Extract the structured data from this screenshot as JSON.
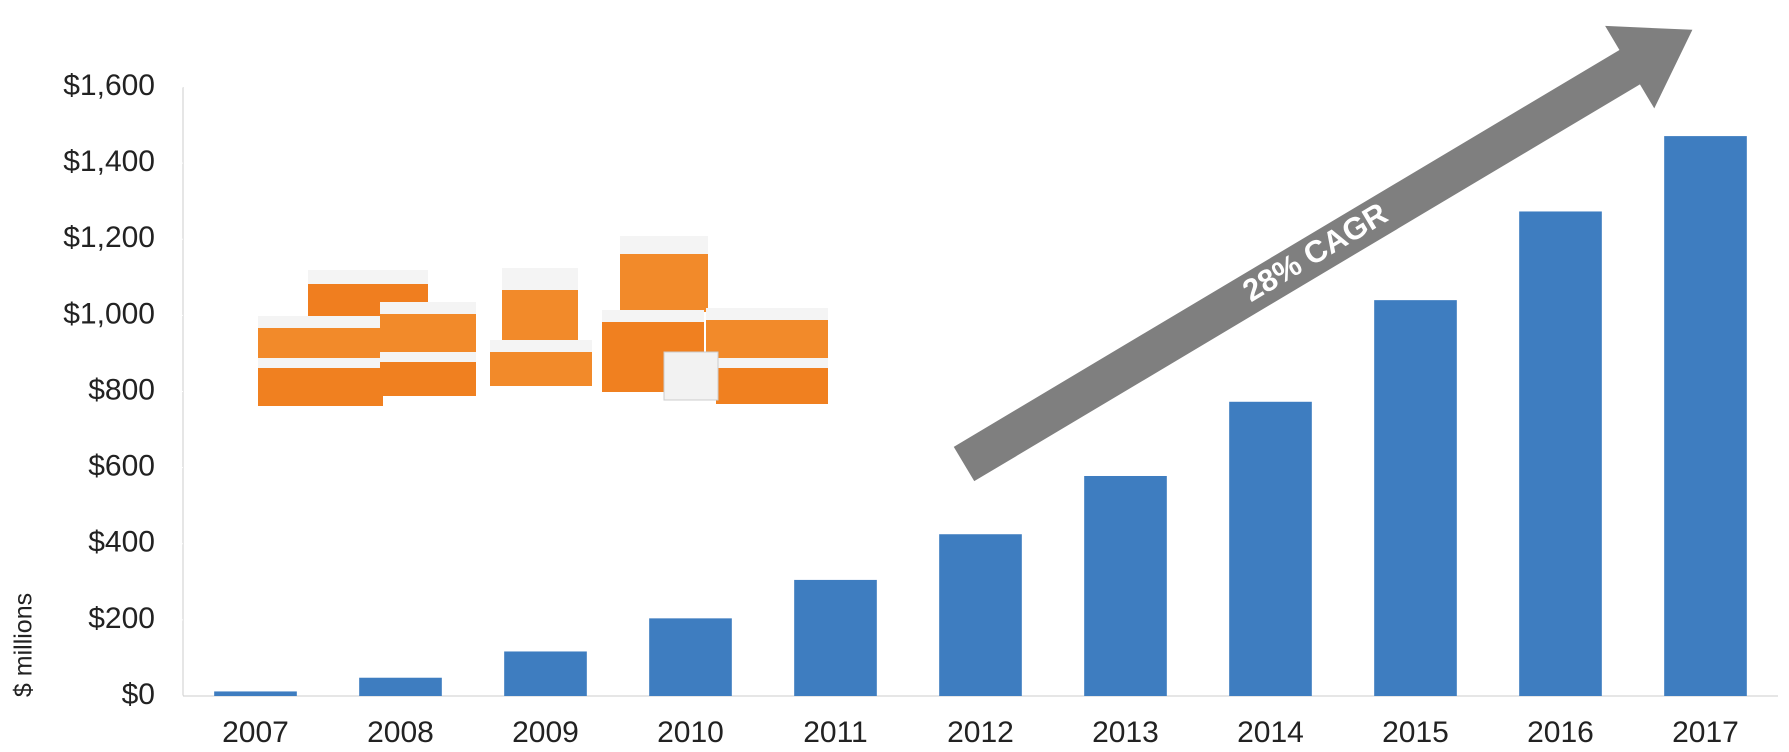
{
  "chart_data": {
    "type": "bar",
    "categories": [
      "2007",
      "2008",
      "2009",
      "2010",
      "2011",
      "2012",
      "2013",
      "2014",
      "2015",
      "2016",
      "2017"
    ],
    "values": [
      12,
      48,
      117,
      204,
      305,
      425,
      578,
      773,
      1040,
      1273,
      1471
    ],
    "color": "#3e7dc0",
    "ylim": [
      0,
      1600
    ],
    "yticks": [
      {
        "value": 0,
        "label": "$0"
      },
      {
        "value": 200,
        "label": "$200"
      },
      {
        "value": 400,
        "label": "$400"
      },
      {
        "value": 600,
        "label": "$600"
      },
      {
        "value": 800,
        "label": "$800"
      },
      {
        "value": 1000,
        "label": "$1,000"
      },
      {
        "value": 1200,
        "label": "$1,200"
      },
      {
        "value": 1400,
        "label": "$1,400"
      },
      {
        "value": 1600,
        "label": "$1,600"
      }
    ],
    "ylabel": "$ millions",
    "annotation": "28% CAGR",
    "grid": false
  }
}
